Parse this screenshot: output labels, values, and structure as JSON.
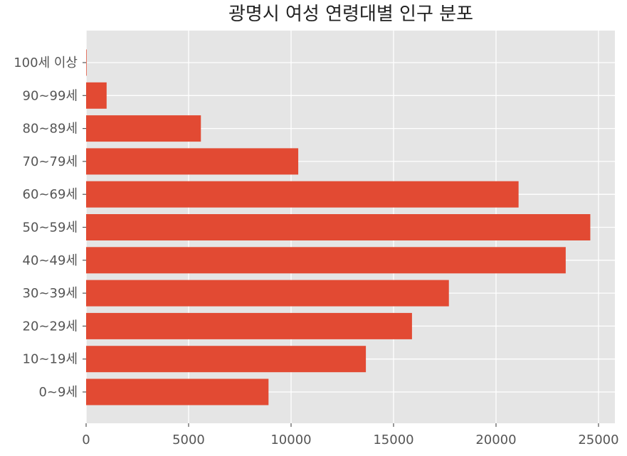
{
  "chart_data": {
    "type": "bar",
    "orientation": "horizontal",
    "title": "광명시 여성 연령대별 인구 분포",
    "xlabel": "",
    "ylabel": "",
    "categories": [
      "0~9세",
      "10~19세",
      "20~29세",
      "30~39세",
      "40~49세",
      "50~59세",
      "60~69세",
      "70~79세",
      "80~89세",
      "90~99세",
      "100세 이상"
    ],
    "values": [
      8900,
      13650,
      15900,
      17700,
      23400,
      24600,
      21100,
      10350,
      5600,
      1000,
      25
    ],
    "xlim": [
      0,
      25800
    ],
    "xticks": [
      0,
      5000,
      10000,
      15000,
      20000,
      25000
    ],
    "grid": true,
    "colors": {
      "bar": "#E24A33",
      "plot_background": "#E5E5E5",
      "grid": "#FFFFFF"
    }
  }
}
